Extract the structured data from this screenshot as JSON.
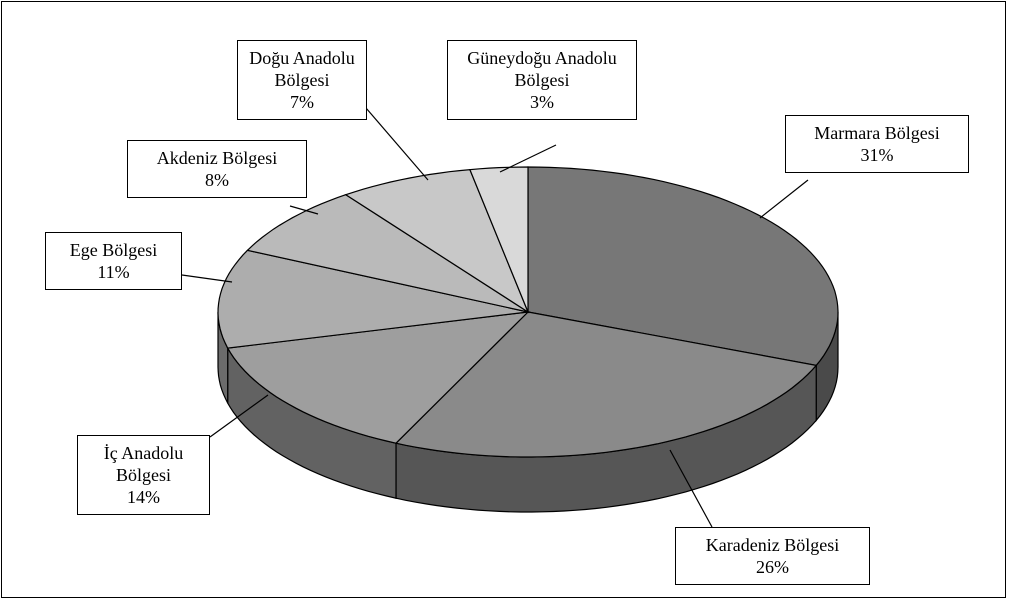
{
  "chart_data": {
    "type": "pie",
    "categories": [
      "Marmara Bölgesi",
      "Karadeniz Bölgesi",
      "İç Anadolu Bölgesi",
      "Ege Bölgesi",
      "Akdeniz Bölgesi",
      "Doğu Anadolu Bölgesi",
      "Güneydoğu Anadolu Bölgesi"
    ],
    "values": [
      31,
      26,
      14,
      11,
      8,
      7,
      3
    ],
    "value_labels": [
      "31%",
      "26%",
      "14%",
      "11%",
      "8%",
      "7%",
      "3%"
    ],
    "colors": [
      "#777777",
      "#8a8a8a",
      "#9e9e9e",
      "#adadad",
      "#bababa",
      "#c8c8c8",
      "#d9d9d9"
    ]
  }
}
